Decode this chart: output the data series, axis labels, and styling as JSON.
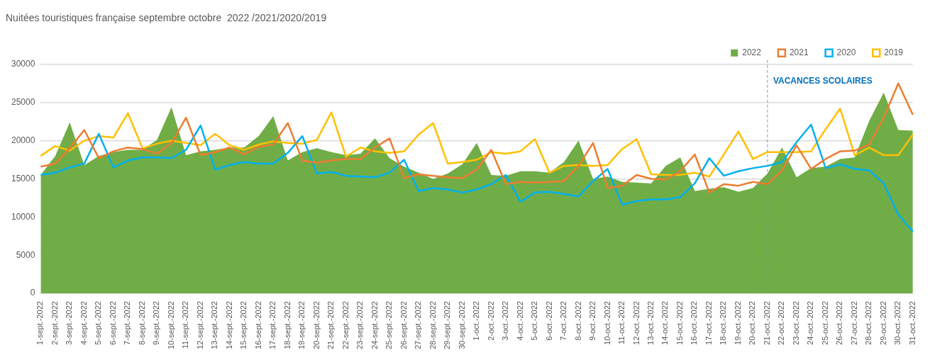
{
  "chart_data": {
    "type": "line",
    "title": "Nuitées touristiques française septembre octobre  2022 /2021/2020/2019",
    "categories": [
      "1-sept.-2022",
      "2-sept.-2022",
      "3-sept.-2022",
      "4-sept.-2022",
      "5-sept.-2022",
      "6-sept.-2022",
      "7-sept.-2022",
      "8-sept.-2022",
      "9-sept.-2022",
      "10-sept.-2022",
      "11-sept.-2022",
      "12-sept.-2022",
      "13-sept.-2022",
      "14-sept.-2022",
      "15-sept.-2022",
      "16-sept.-2022",
      "17-sept.-2022",
      "18-sept.-2022",
      "19-sept.-2022",
      "20-sept.-2022",
      "21-sept.-2022",
      "22-sept.-2022",
      "23-sept.-2022",
      "24-sept.-2022",
      "25-sept.-2022",
      "26-sept.-2022",
      "27-sept.-2022",
      "28-sept.-2022",
      "29-sept.-2022",
      "30-sept.-2022",
      "1-oct.-2022",
      "2-oct.-2022",
      "3-oct.-2022",
      "4-oct.-2022",
      "5-oct.-2022",
      "6-oct.-2022",
      "7-oct.-2022",
      "8-oct.-2022",
      "9-oct.-2022",
      "10-oct.-2022",
      "11-oct.-2022",
      "12-oct.-2022",
      "13-oct.-2022",
      "14-oct.-2022",
      "15-oct.-2022",
      "16-oct.-2022",
      "17-oct.-2022",
      "18-oct.-2022",
      "19-oct.-2022",
      "20-oct.-2022",
      "21-oct.-2022",
      "22-oct.-2022",
      "23-oct.-2022",
      "24-oct.-2022",
      "25-oct.-2022",
      "26-oct.-2022",
      "27-oct.-2022",
      "28-oct.-2022",
      "29-oct.-2022",
      "30-oct.-2022",
      "31-oct.-2022"
    ],
    "series": [
      {
        "name": "2022",
        "type": "area",
        "color": "#70ad47",
        "values": [
          15500,
          18000,
          22400,
          16800,
          18000,
          18500,
          18800,
          18800,
          20100,
          24400,
          18100,
          18600,
          18800,
          19100,
          19100,
          20600,
          23200,
          17400,
          18500,
          19000,
          18500,
          18100,
          18300,
          20300,
          17700,
          16600,
          15800,
          15000,
          15700,
          16900,
          19700,
          15500,
          15400,
          16000,
          16000,
          15800,
          17200,
          20000,
          15000,
          15300,
          14600,
          14500,
          14400,
          16700,
          17800,
          13400,
          13700,
          13900,
          13300,
          13800,
          15700,
          19100,
          15200,
          16400,
          16600,
          17600,
          17800,
          22600,
          26300,
          21400,
          21300
        ]
      },
      {
        "name": "2021",
        "color": "#ed7d31",
        "values": [
          16600,
          17000,
          19000,
          21400,
          17700,
          18600,
          19100,
          18900,
          18300,
          19700,
          23000,
          18100,
          18500,
          19100,
          18200,
          19200,
          19500,
          22300,
          17400,
          17100,
          17400,
          17600,
          17600,
          19100,
          20300,
          15100,
          15600,
          15400,
          15200,
          15100,
          16200,
          18800,
          14300,
          14600,
          14500,
          14600,
          14700,
          16700,
          19700,
          13800,
          14100,
          15500,
          15000,
          14900,
          16000,
          18200,
          13200,
          14300,
          14100,
          14600,
          14300,
          16100,
          19400,
          16300,
          17600,
          18600,
          18700,
          19500,
          23000,
          27500,
          23400
        ]
      },
      {
        "name": "2020",
        "color": "#00b0f0",
        "values": [
          15500,
          15800,
          16500,
          17000,
          20900,
          16500,
          17400,
          17800,
          17800,
          17700,
          18800,
          22000,
          16200,
          16800,
          17200,
          17000,
          17000,
          18400,
          20600,
          15700,
          15900,
          15400,
          15300,
          15200,
          15800,
          17500,
          13400,
          13800,
          13600,
          13200,
          13600,
          14300,
          15500,
          12000,
          13200,
          13300,
          13000,
          12700,
          14700,
          16300,
          11600,
          12100,
          12300,
          12300,
          12600,
          14400,
          17700,
          15400,
          16000,
          16400,
          16700,
          17200,
          19800,
          22100,
          16400,
          16900,
          16300,
          16100,
          14400,
          10300,
          8100
        ]
      },
      {
        "name": "2019",
        "color": "#ffc000",
        "values": [
          18000,
          19300,
          18700,
          20000,
          20600,
          20400,
          23600,
          19000,
          19600,
          20000,
          19700,
          19400,
          20900,
          19400,
          18800,
          19500,
          19900,
          19700,
          19600,
          20100,
          23700,
          17900,
          19100,
          18600,
          18400,
          18600,
          20800,
          22300,
          17000,
          17200,
          17500,
          18500,
          18300,
          18600,
          20200,
          15800,
          16700,
          16800,
          16700,
          16800,
          18900,
          20200,
          15600,
          15500,
          15500,
          15800,
          15300,
          18200,
          21200,
          17600,
          18500,
          18500,
          18500,
          18600,
          21500,
          24200,
          18100,
          19100,
          18100,
          18100,
          20800
        ]
      }
    ],
    "ylim": [
      0,
      30000
    ],
    "yticks": [
      0,
      5000,
      10000,
      15000,
      20000,
      25000,
      30000
    ],
    "grid": "y",
    "legend": "top right",
    "ref_lines": [
      {
        "axis": "x",
        "value": "21-oct.-2022",
        "label": "VACANCES SCOLAIRES",
        "color": "#5b9bd5",
        "line_style": "dashed"
      }
    ]
  }
}
